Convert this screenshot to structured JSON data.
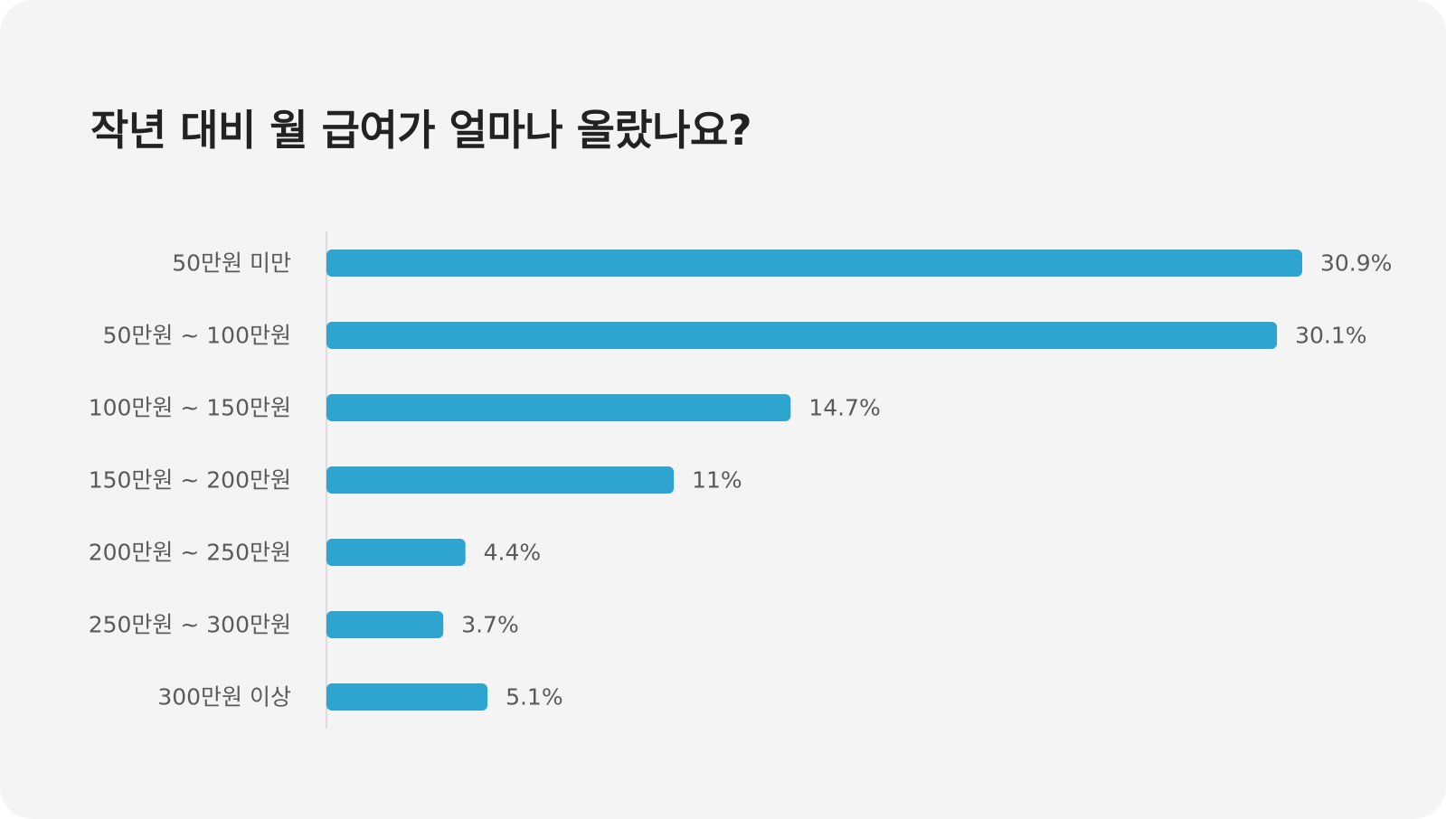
{
  "title": "작년 대비 월 급여가 얼마나 올랐나요?",
  "colors": {
    "bar": "#2ea5d0",
    "axis": "#dcdcdc",
    "background": "#f4f4f4"
  },
  "chart_data": {
    "type": "bar",
    "orientation": "horizontal",
    "title": "작년 대비 월 급여가 얼마나 올랐나요?",
    "categories": [
      "50만원 미만",
      "50만원 ~ 100만원",
      "100만원 ~ 150만원",
      "150만원 ~ 200만원",
      "200만원 ~ 250만원",
      "250만원 ~ 300만원",
      "300만원 이상"
    ],
    "values": [
      30.9,
      30.1,
      14.7,
      11,
      4.4,
      3.7,
      5.1
    ],
    "value_labels": [
      "30.9%",
      "30.1%",
      "14.7%",
      "11%",
      "4.4%",
      "3.7%",
      "5.1%"
    ],
    "unit": "%",
    "xlim": [
      0,
      30.9
    ],
    "grid": false,
    "legend": "none"
  }
}
